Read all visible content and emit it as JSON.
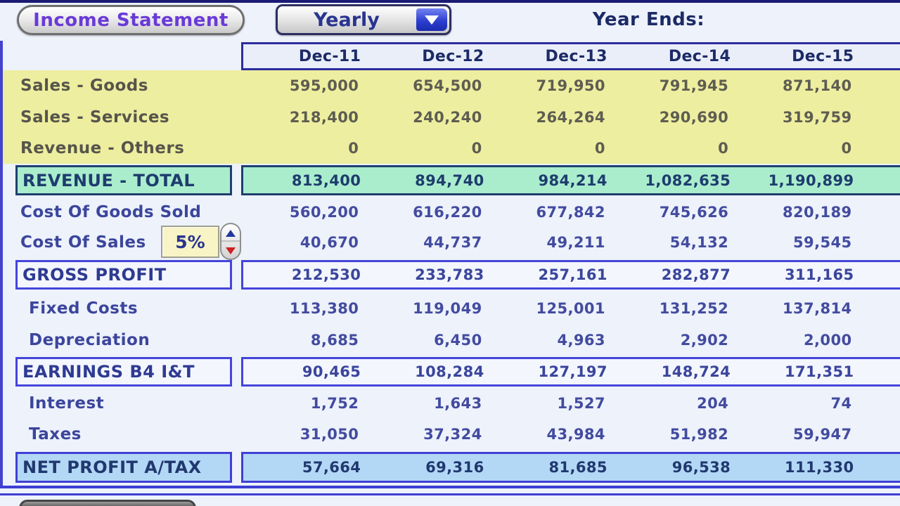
{
  "header": {
    "title_button_label": "Income Statement",
    "period_selector_value": "Yearly",
    "year_ends_label": "Year Ends:"
  },
  "controls": {
    "cost_of_sales_rate": "5%"
  },
  "table": {
    "columns": [
      "Dec-11",
      "Dec-12",
      "Dec-13",
      "Dec-14",
      "Dec-15"
    ],
    "rows": [
      {
        "label": "Sales - Goods",
        "values": [
          "595,000",
          "654,500",
          "719,950",
          "791,945",
          "871,140"
        ]
      },
      {
        "label": "Sales - Services",
        "values": [
          "218,400",
          "240,240",
          "264,264",
          "290,690",
          "319,759"
        ]
      },
      {
        "label": "Revenue - Others",
        "values": [
          "0",
          "0",
          "0",
          "0",
          "0"
        ]
      },
      {
        "label": "REVENUE - TOTAL",
        "values": [
          "813,400",
          "894,740",
          "984,214",
          "1,082,635",
          "1,190,899"
        ]
      },
      {
        "label": "Cost Of Goods Sold",
        "values": [
          "560,200",
          "616,220",
          "677,842",
          "745,626",
          "820,189"
        ]
      },
      {
        "label": "Cost Of Sales",
        "values": [
          "40,670",
          "44,737",
          "49,211",
          "54,132",
          "59,545"
        ]
      },
      {
        "label": "GROSS PROFIT",
        "values": [
          "212,530",
          "233,783",
          "257,161",
          "282,877",
          "311,165"
        ]
      },
      {
        "label": "Fixed Costs",
        "values": [
          "113,380",
          "119,049",
          "125,001",
          "131,252",
          "137,814"
        ]
      },
      {
        "label": "Depreciation",
        "values": [
          "8,685",
          "6,450",
          "4,963",
          "2,902",
          "2,000"
        ]
      },
      {
        "label": "EARNINGS B4 I&T",
        "values": [
          "90,465",
          "108,284",
          "127,197",
          "148,724",
          "171,351"
        ]
      },
      {
        "label": "Interest",
        "values": [
          "1,752",
          "1,643",
          "1,527",
          "204",
          "74"
        ]
      },
      {
        "label": "Taxes",
        "values": [
          "31,050",
          "37,324",
          "43,984",
          "51,982",
          "59,947"
        ]
      },
      {
        "label": "NET PROFIT A/TAX",
        "values": [
          "57,664",
          "69,316",
          "81,685",
          "96,538",
          "111,330"
        ]
      }
    ]
  },
  "colors": {
    "input_band": "#eeeea0",
    "revenue_total_bg": "#aaedcd",
    "net_profit_bg": "#b3d8f6",
    "accent_border": "#4444d8",
    "header_text": "#1c2a66",
    "title_text": "#6a3ad8"
  }
}
